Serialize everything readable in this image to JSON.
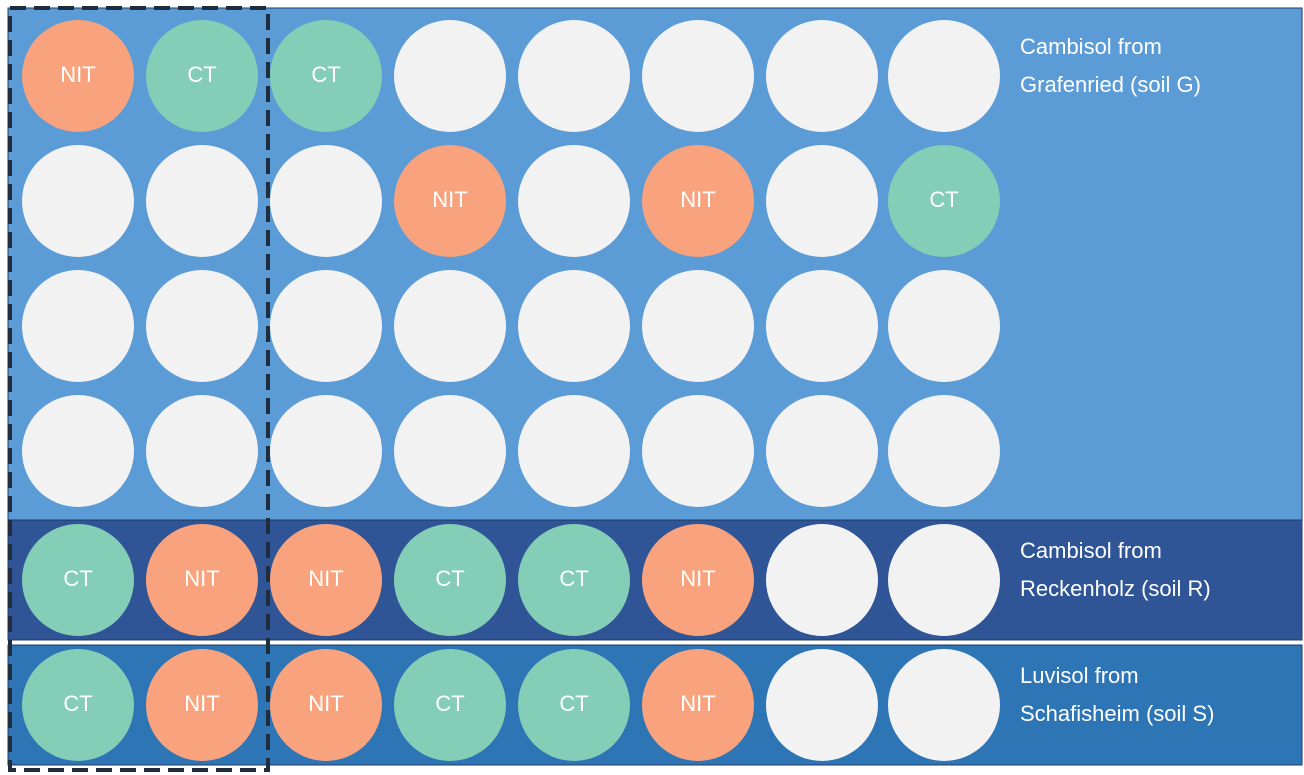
{
  "cell_colors": {
    "NIT": "#f8a37d",
    "CT": "#84cdb6"
  },
  "panels": [
    {
      "label": [
        "Cambisol from",
        "Grafenried (soil G)"
      ],
      "rows": [
        [
          "NIT",
          "CT",
          "CT",
          null,
          null,
          null,
          null,
          null
        ],
        [
          null,
          null,
          null,
          "NIT",
          null,
          "NIT",
          null,
          "CT"
        ],
        [
          null,
          null,
          null,
          null,
          null,
          null,
          null,
          null
        ],
        [
          null,
          null,
          null,
          null,
          null,
          null,
          null,
          null
        ]
      ]
    },
    {
      "label": [
        "Cambisol from",
        "Reckenholz (soil R)"
      ],
      "rows": [
        [
          "CT",
          "NIT",
          "NIT",
          "CT",
          "CT",
          "NIT",
          null,
          null
        ]
      ]
    },
    {
      "label": [
        "Luvisol from",
        "Schafisheim (soil S)"
      ],
      "rows": [
        [
          "CT",
          "NIT",
          "NIT",
          "CT",
          "CT",
          "NIT",
          null,
          null
        ]
      ]
    }
  ]
}
